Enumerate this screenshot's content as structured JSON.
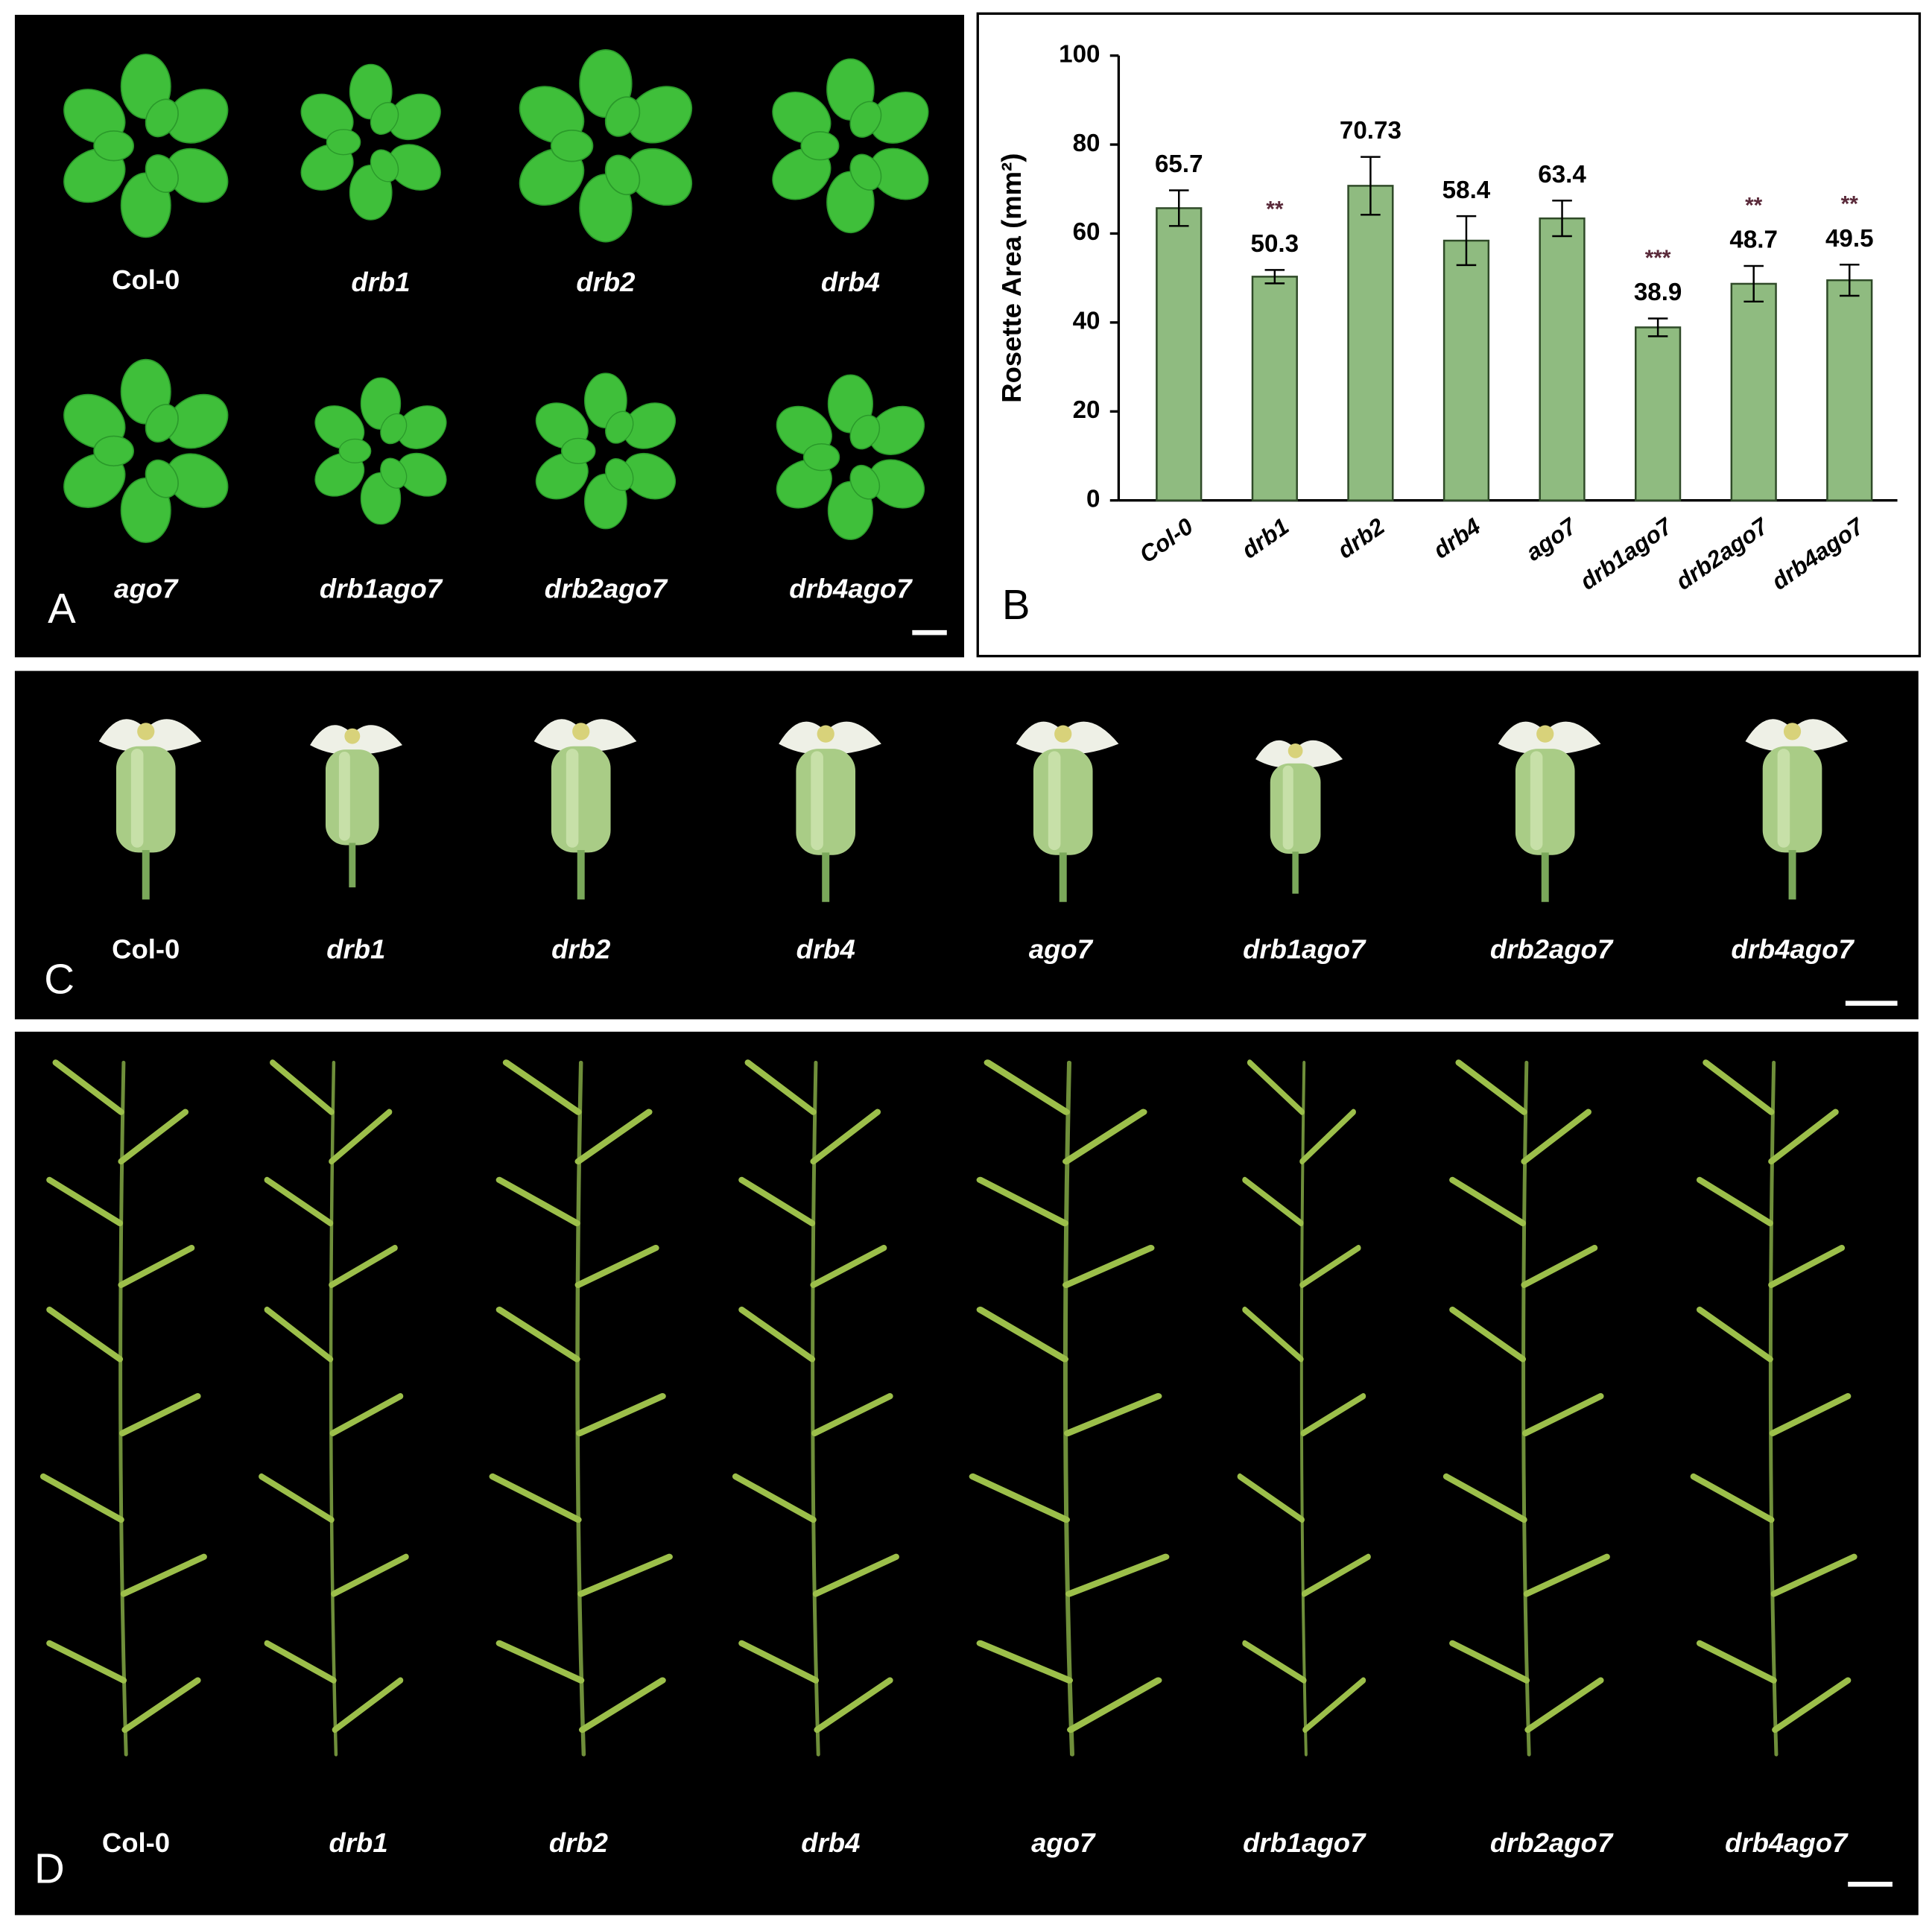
{
  "panel_a": {
    "letter": "A",
    "labels": [
      "Col-0",
      "drb1",
      "drb2",
      "drb4",
      "ago7",
      "drb1ago7",
      "drb2ago7",
      "drb4ago7"
    ]
  },
  "chart_data": {
    "type": "bar",
    "letter": "B",
    "y_label": "Rosette  Area (mm²)",
    "categories": [
      "Col-0",
      "drb1",
      "drb2",
      "drb4",
      "ago7",
      "drb1ago7",
      "drb2ago7",
      "drb4ago7"
    ],
    "values": [
      65.7,
      50.3,
      70.73,
      58.4,
      63.4,
      38.9,
      48.7,
      49.5
    ],
    "errors": [
      4,
      1.5,
      6.5,
      5.5,
      4,
      2,
      4,
      3.5
    ],
    "significance": [
      null,
      "**",
      null,
      null,
      null,
      "***",
      "**",
      "**"
    ],
    "color": "#8fbb80",
    "ylim": [
      0,
      100
    ],
    "yticks": [
      0,
      20,
      40,
      60,
      80,
      100
    ]
  },
  "panel_c": {
    "letter": "C",
    "labels": [
      "Col-0",
      "drb1",
      "drb2",
      "drb4",
      "ago7",
      "drb1ago7",
      "drb2ago7",
      "drb4ago7"
    ]
  },
  "panel_d": {
    "letter": "D",
    "labels": [
      "Col-0",
      "drb1",
      "drb2",
      "drb4",
      "ago7",
      "drb1ago7",
      "drb2ago7",
      "drb4ago7"
    ]
  }
}
